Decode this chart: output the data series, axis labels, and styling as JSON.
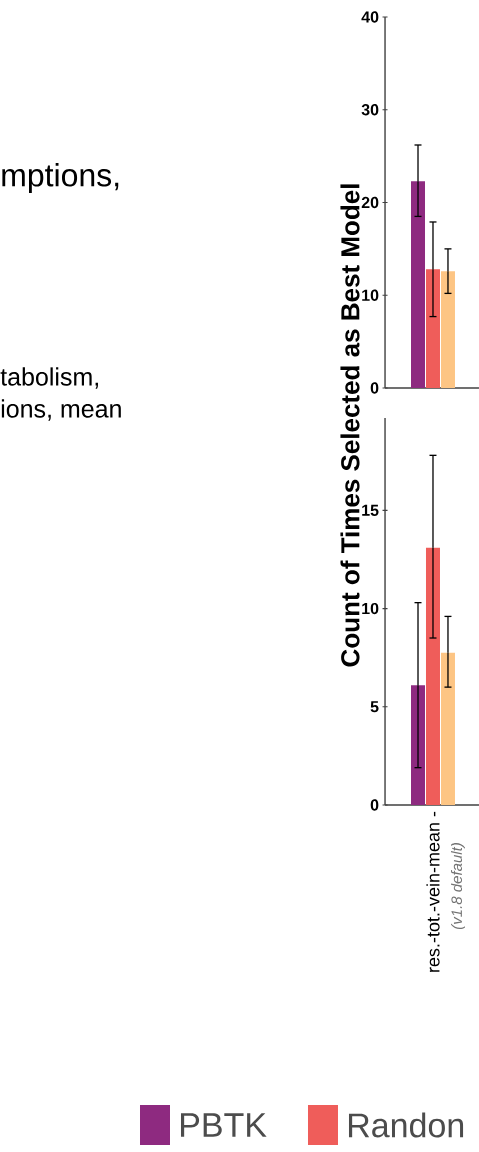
{
  "chart_data": [
    {
      "type": "bar",
      "ylabel": "Count of Times Selected as Best Model",
      "annotations": [
        "mptions,",
        "tabolism,",
        "ions, mean"
      ],
      "categories": [
        null
      ],
      "tick_labels": "y",
      "ylim": [
        0,
        40
      ],
      "yticks": [
        0,
        10,
        20,
        30,
        40
      ],
      "series": [
        {
          "color": "#8e2a80",
          "values": [
            22.3
          ],
          "errors": [
            [
              18.5,
              26.2
            ]
          ]
        },
        {
          "color": "#ef5d5a",
          "values": [
            12.8
          ],
          "errors": [
            [
              7.7,
              17.9
            ]
          ]
        },
        {
          "color": "#fdc584",
          "values": [
            12.6
          ],
          "errors": [
            [
              10.2,
              15.0
            ]
          ]
        }
      ]
    },
    {
      "type": "bar",
      "categories": [
        "res.-tot.-vein-mean -"
      ],
      "annotations": [
        "(v1.8 default)"
      ],
      "ylim": [
        0,
        19.7
      ],
      "yticks": [
        0,
        5,
        10,
        15
      ],
      "legend": "bottom",
      "series": [
        {
          "name": "PBTK",
          "color": "#8e2a80",
          "values": [
            6.1
          ],
          "errors": [
            [
              1.9,
              10.3
            ]
          ]
        },
        {
          "name": "Randon",
          "color": "#ef5d5a",
          "values": [
            13.1
          ],
          "errors": [
            [
              8.5,
              17.8
            ]
          ]
        },
        {
          "color": "#fdc584",
          "values": [
            7.75
          ],
          "errors": [
            [
              6.0,
              9.6
            ]
          ]
        }
      ]
    }
  ]
}
